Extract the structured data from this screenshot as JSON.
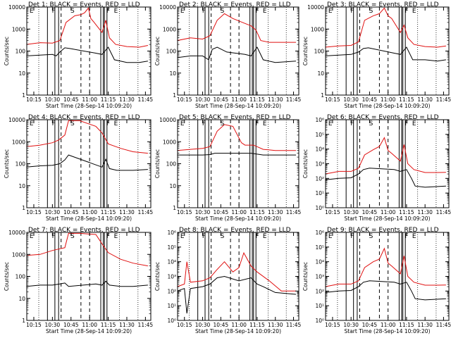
{
  "colors": {
    "events": "#000000",
    "lld": "#e01010",
    "axes": "#000000",
    "background": "#ffffff"
  },
  "chart_data": [
    {
      "type": "line",
      "title": "Det 1: BLACK = Events, RED = LLD",
      "xlabel": "Start Time (28-Sep-14 10:09:20)",
      "ylabel": "Counts/sec",
      "yscale": "log",
      "ylim": [
        1,
        10000
      ],
      "ytick_labels": [
        "1",
        "10",
        "100",
        "1000",
        "10000"
      ],
      "x_tick_labels": [
        "10:15",
        "10:30",
        "10:45",
        "11:00",
        "11:15",
        "11:30",
        "11:45"
      ],
      "xlim": [
        "10:09:20",
        "11:49:20"
      ],
      "legend": "none",
      "marker_labels": [
        "E",
        "F",
        "S",
        "F",
        "E"
      ],
      "series": [
        {
          "name": "RED",
          "color": "#e01010",
          "x": [
            "10:09",
            "10:20",
            "10:30",
            "10:36",
            "10:41",
            "10:48",
            "10:53",
            "10:56",
            "10:59",
            "11:01",
            "11:03",
            "11:10",
            "11:13",
            "11:16",
            "11:21",
            "11:30",
            "11:40",
            "11:47"
          ],
          "values": [
            200,
            240,
            230,
            300,
            2000,
            4000,
            4500,
            5500,
            9000,
            3000,
            2200,
            700,
            2500,
            400,
            200,
            160,
            150,
            180
          ]
        },
        {
          "name": "BLACK",
          "color": "#000000",
          "x": [
            "10:09",
            "10:20",
            "10:30",
            "10:33",
            "10:36",
            "10:40",
            "10:44",
            "11:05",
            "11:10",
            "11:15",
            "11:20",
            "11:30",
            "11:40",
            "11:47"
          ],
          "values": [
            60,
            65,
            70,
            60,
            90,
            140,
            130,
            80,
            70,
            150,
            40,
            30,
            30,
            35
          ]
        }
      ]
    },
    {
      "type": "line",
      "title": "Det 2: BLACK = Events, RED = LLD",
      "xlabel": "Start Time (28-Sep-14 10:09:20)",
      "ylabel": "Counts/sec",
      "yscale": "log",
      "ylim": [
        1,
        10000
      ],
      "ytick_labels": [
        "1",
        "10",
        "100",
        "1000",
        "10000"
      ],
      "x_tick_labels": [
        "10:15",
        "10:30",
        "10:45",
        "11:00",
        "11:15",
        "11:30",
        "11:45"
      ],
      "xlim": [
        "10:09:20",
        "11:49:20"
      ],
      "legend": "none",
      "marker_labels": [
        "E",
        "F",
        "S",
        "F",
        "E"
      ],
      "series": [
        {
          "name": "RED",
          "color": "#e01010",
          "x": [
            "10:09",
            "10:20",
            "10:30",
            "10:36",
            "10:42",
            "10:48",
            "10:55",
            "11:05",
            "11:10",
            "11:14",
            "11:18",
            "11:25",
            "11:35",
            "11:47"
          ],
          "values": [
            300,
            400,
            350,
            500,
            2500,
            5000,
            3000,
            1800,
            1400,
            900,
            300,
            250,
            250,
            250
          ]
        },
        {
          "name": "BLACK",
          "color": "#000000",
          "x": [
            "10:09",
            "10:20",
            "10:30",
            "10:35",
            "10:38",
            "10:42",
            "10:50",
            "11:05",
            "11:10",
            "11:15",
            "11:20",
            "11:30",
            "11:47"
          ],
          "values": [
            50,
            60,
            60,
            40,
            120,
            150,
            90,
            70,
            60,
            150,
            40,
            30,
            35
          ]
        }
      ]
    },
    {
      "type": "line",
      "title": "Det 3: BLACK = Events, RED = LLD",
      "xlabel": "Start Time (28-Sep-14 10:09:20)",
      "ylabel": "Counts/sec",
      "yscale": "log",
      "ylim": [
        1,
        10000
      ],
      "ytick_labels": [
        "1",
        "10",
        "100",
        "1000",
        "10000"
      ],
      "x_tick_labels": [
        "10:15",
        "10:30",
        "10:45",
        "11:00",
        "11:15",
        "11:30",
        "11:45"
      ],
      "xlim": [
        "10:09:20",
        "11:49:20"
      ],
      "legend": "none",
      "marker_labels": [
        "E",
        "F",
        "S",
        "F",
        "E"
      ],
      "series": [
        {
          "name": "RED",
          "color": "#e01010",
          "x": [
            "10:09",
            "10:20",
            "10:30",
            "10:36",
            "10:41",
            "10:48",
            "10:53",
            "10:57",
            "11:00",
            "11:03",
            "11:10",
            "11:13",
            "11:16",
            "11:21",
            "11:30",
            "11:40",
            "11:47"
          ],
          "values": [
            150,
            170,
            180,
            260,
            2500,
            4000,
            5000,
            9000,
            4000,
            3000,
            700,
            1500,
            400,
            200,
            160,
            150,
            170
          ]
        },
        {
          "name": "BLACK",
          "color": "#000000",
          "x": [
            "10:09",
            "10:20",
            "10:30",
            "10:36",
            "10:40",
            "10:44",
            "11:05",
            "11:10",
            "11:15",
            "11:20",
            "11:30",
            "11:40",
            "11:47"
          ],
          "values": [
            60,
            65,
            70,
            90,
            130,
            140,
            80,
            70,
            150,
            40,
            40,
            35,
            40
          ]
        }
      ]
    },
    {
      "type": "line",
      "title": "Det 4: BLACK = Events, RED = LLD",
      "xlabel": "Start Time (28-Sep-14 10:09:20)",
      "ylabel": "Counts/sec",
      "yscale": "log",
      "ylim": [
        1,
        10000
      ],
      "ytick_labels": [
        "1",
        "10",
        "100",
        "1000",
        "10000"
      ],
      "x_tick_labels": [
        "10:15",
        "10:30",
        "10:45",
        "11:00",
        "11:15",
        "11:30",
        "11:45"
      ],
      "xlim": [
        "10:09:20",
        "11:49:20"
      ],
      "legend": "none",
      "marker_labels": [
        "E",
        "F",
        "S",
        "F",
        "E"
      ],
      "series": [
        {
          "name": "RED",
          "color": "#e01010",
          "x": [
            "10:09",
            "10:20",
            "10:30",
            "10:35",
            "10:40",
            "10:43",
            "10:52",
            "11:05",
            "11:10",
            "11:15",
            "11:25",
            "11:35",
            "11:47"
          ],
          "values": [
            600,
            700,
            900,
            1200,
            2000,
            9000,
            9000,
            5000,
            2500,
            800,
            500,
            350,
            300
          ]
        },
        {
          "name": "BLACK",
          "color": "#000000",
          "x": [
            "10:09",
            "10:20",
            "10:30",
            "10:36",
            "10:40",
            "10:43",
            "11:10",
            "11:13",
            "11:16",
            "11:22",
            "11:35",
            "11:47"
          ],
          "values": [
            70,
            80,
            85,
            100,
            150,
            250,
            70,
            160,
            60,
            50,
            50,
            55
          ]
        }
      ]
    },
    {
      "type": "line",
      "title": "Det 5: BLACK = Events, RED = LLD",
      "xlabel": "Start Time (28-Sep-14 10:09:20)",
      "ylabel": "Counts/sec",
      "yscale": "log",
      "ylim": [
        1,
        10000
      ],
      "ytick_labels": [
        "1",
        "10",
        "100",
        "1000",
        "10000"
      ],
      "x_tick_labels": [
        "10:15",
        "10:30",
        "10:45",
        "11:00",
        "11:15",
        "11:30",
        "11:45"
      ],
      "xlim": [
        "10:09:20",
        "11:49:20"
      ],
      "legend": "none",
      "marker_labels": [
        "E",
        "F",
        "S",
        "F",
        "E"
      ],
      "series": [
        {
          "name": "RED",
          "color": "#e01010",
          "x": [
            "10:09",
            "10:20",
            "10:30",
            "10:36",
            "10:42",
            "10:48",
            "10:55",
            "11:02",
            "11:05",
            "11:12",
            "11:20",
            "11:30",
            "11:47"
          ],
          "values": [
            400,
            450,
            500,
            600,
            3000,
            6000,
            5000,
            900,
            700,
            700,
            450,
            400,
            400
          ]
        },
        {
          "name": "BLACK",
          "color": "#000000",
          "x": [
            "10:09",
            "10:20",
            "10:30",
            "10:36",
            "10:40",
            "11:05",
            "11:10",
            "11:20",
            "11:30",
            "11:47"
          ],
          "values": [
            250,
            250,
            250,
            260,
            300,
            300,
            300,
            250,
            250,
            250
          ]
        }
      ]
    },
    {
      "type": "line",
      "title": "Det 6: BLACK = Events, RED = LLD",
      "xlabel": "Start Time (28-Sep-14 10:09:20)",
      "ylabel": "Counts/sec",
      "yscale": "log",
      "ylim": [
        1,
        1000000
      ],
      "ytick_labels": [
        "10⁰",
        "10¹",
        "10²",
        "10³",
        "10⁴",
        "10⁵",
        "10⁶"
      ],
      "x_tick_labels": [
        "10:15",
        "10:30",
        "10:45",
        "11:00",
        "11:15",
        "11:30",
        "11:45"
      ],
      "xlim": [
        "10:09:20",
        "11:49:20"
      ],
      "legend": "none",
      "marker_labels": [
        "E",
        "F",
        "S",
        "F",
        "E"
      ],
      "series": [
        {
          "name": "RED",
          "color": "#e01010",
          "x": [
            "10:09",
            "10:20",
            "10:30",
            "10:36",
            "10:41",
            "10:48",
            "10:53",
            "10:57",
            "11:00",
            "11:03",
            "11:10",
            "11:13",
            "11:16",
            "11:21",
            "11:30",
            "11:40",
            "11:47"
          ],
          "values": [
            200,
            300,
            300,
            500,
            4000,
            9000,
            15000,
            60000,
            8000,
            5000,
            1500,
            20000,
            1000,
            400,
            250,
            250,
            260
          ]
        },
        {
          "name": "BLACK",
          "color": "#000000",
          "x": [
            "10:09",
            "10:20",
            "10:30",
            "10:36",
            "10:40",
            "10:45",
            "11:05",
            "11:10",
            "11:15",
            "11:19",
            "11:22",
            "11:30",
            "11:47"
          ],
          "values": [
            80,
            100,
            110,
            200,
            400,
            500,
            400,
            300,
            400,
            100,
            30,
            25,
            30
          ]
        }
      ]
    },
    {
      "type": "line",
      "title": "Det 7: BLACK = Events, RED = LLD",
      "xlabel": "Start Time (28-Sep-14 10:09:20)",
      "ylabel": "Counts/sec",
      "yscale": "log",
      "ylim": [
        1,
        10000
      ],
      "ytick_labels": [
        "1",
        "10",
        "100",
        "1000",
        "10000"
      ],
      "x_tick_labels": [
        "10:15",
        "10:30",
        "10:45",
        "11:00",
        "11:15",
        "11:30",
        "11:45"
      ],
      "xlim": [
        "10:09:20",
        "11:49:20"
      ],
      "legend": "none",
      "marker_labels": [
        "E",
        "F",
        "S",
        "F",
        "E"
      ],
      "series": [
        {
          "name": "RED",
          "color": "#e01010",
          "x": [
            "10:09",
            "10:20",
            "10:30",
            "10:36",
            "10:40",
            "10:43",
            "10:52",
            "11:05",
            "11:10",
            "11:15",
            "11:25",
            "11:35",
            "11:47"
          ],
          "values": [
            900,
            1000,
            1500,
            1800,
            2000,
            9000,
            9000,
            8000,
            3000,
            1200,
            600,
            400,
            300
          ]
        },
        {
          "name": "BLACK",
          "color": "#000000",
          "x": [
            "10:09",
            "10:20",
            "10:30",
            "10:36",
            "10:40",
            "10:43",
            "11:05",
            "11:10",
            "11:13",
            "11:16",
            "11:25",
            "11:35",
            "11:47"
          ],
          "values": [
            35,
            40,
            40,
            45,
            50,
            35,
            45,
            40,
            60,
            40,
            35,
            35,
            40
          ]
        }
      ]
    },
    {
      "type": "line",
      "title": "Det 8: BLACK = Events, RED = LLD",
      "xlabel": "Start Time (28-Sep-14 10:09:20)",
      "ylabel": "Counts/sec",
      "yscale": "log",
      "ylim": [
        1,
        1000000
      ],
      "ytick_labels": [
        "10⁰",
        "10¹",
        "10²",
        "10³",
        "10⁴",
        "10⁵",
        "10⁶"
      ],
      "x_tick_labels": [
        "10:15",
        "10:30",
        "10:45",
        "11:00",
        "11:15",
        "11:30",
        "11:45"
      ],
      "xlim": [
        "10:09:20",
        "11:49:20"
      ],
      "legend": "none",
      "marker_labels": [
        "E",
        "F",
        "S",
        "F",
        "E"
      ],
      "series": [
        {
          "name": "RED",
          "color": "#e01010",
          "x": [
            "10:09",
            "10:15",
            "10:17",
            "10:20",
            "10:30",
            "10:36",
            "10:42",
            "10:48",
            "10:55",
            "11:00",
            "11:04",
            "11:10",
            "11:15",
            "11:25",
            "11:35",
            "11:47"
          ],
          "values": [
            200,
            300,
            10000,
            400,
            500,
            800,
            3000,
            10000,
            2000,
            4000,
            40000,
            5000,
            2000,
            500,
            100,
            100
          ]
        },
        {
          "name": "BLACK",
          "color": "#000000",
          "x": [
            "10:09",
            "10:15",
            "10:17",
            "10:20",
            "10:30",
            "10:36",
            "10:42",
            "10:48",
            "11:00",
            "11:10",
            "11:15",
            "11:20",
            "11:30",
            "11:47"
          ],
          "values": [
            100,
            150,
            3,
            150,
            200,
            300,
            800,
            1000,
            500,
            800,
            300,
            200,
            80,
            60
          ]
        }
      ]
    },
    {
      "type": "line",
      "title": "Det 9: BLACK = Events, RED = LLD",
      "xlabel": "Start Time (28-Sep-14 10:09:20)",
      "ylabel": "Counts/sec",
      "yscale": "log",
      "ylim": [
        1,
        1000000
      ],
      "ytick_labels": [
        "10⁰",
        "10¹",
        "10²",
        "10³",
        "10⁴",
        "10⁵",
        "10⁶"
      ],
      "x_tick_labels": [
        "10:15",
        "10:30",
        "10:45",
        "11:00",
        "11:15",
        "11:30",
        "11:45"
      ],
      "xlim": [
        "10:09:20",
        "11:49:20"
      ],
      "legend": "none",
      "marker_labels": [
        "E",
        "F",
        "S",
        "F",
        "E"
      ],
      "series": [
        {
          "name": "RED",
          "color": "#e01010",
          "x": [
            "10:09",
            "10:20",
            "10:30",
            "10:36",
            "10:41",
            "10:48",
            "10:53",
            "10:57",
            "11:00",
            "11:03",
            "11:10",
            "11:13",
            "11:16",
            "11:21",
            "11:30",
            "11:40",
            "11:47"
          ],
          "values": [
            200,
            300,
            300,
            500,
            4000,
            10000,
            15000,
            80000,
            8000,
            5000,
            1500,
            25000,
            1000,
            400,
            250,
            250,
            260
          ]
        },
        {
          "name": "BLACK",
          "color": "#000000",
          "x": [
            "10:09",
            "10:20",
            "10:30",
            "10:36",
            "10:40",
            "10:45",
            "11:05",
            "11:10",
            "11:15",
            "11:19",
            "11:22",
            "11:30",
            "11:47"
          ],
          "values": [
            80,
            100,
            110,
            200,
            400,
            500,
            400,
            300,
            400,
            100,
            30,
            25,
            30
          ]
        }
      ]
    }
  ]
}
